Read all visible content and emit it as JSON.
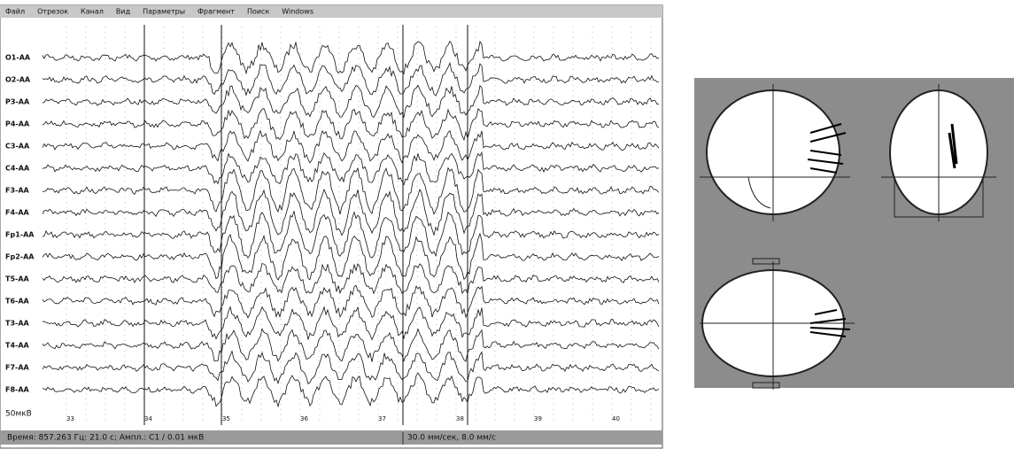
{
  "menu": [
    "Файл",
    "Отрезок",
    "Канал",
    "Вид",
    "Параметры",
    "Фрагмент",
    "Поиск",
    "Windows"
  ],
  "channels": [
    "O1-AA",
    "O2-AA",
    "P3-AA",
    "P4-AA",
    "C3-AA",
    "C4-AA",
    "F3-AA",
    "F4-AA",
    "Fp1-AA",
    "Fp2-AA",
    "T5-AA",
    "T6-AA",
    "T3-AA",
    "T4-AA",
    "F7-AA",
    "F8-AA"
  ],
  "time_ticks": [
    "33",
    "34",
    "35",
    "36",
    "37",
    "38",
    "39",
    "40"
  ],
  "scale_label": "50мкВ",
  "status": {
    "left": "Время: 857.263 Гц: 21.0 с; Ампл.: C1 / 0.01 мкВ",
    "right": "30.0 мм/сек, 8.0 мм/с"
  }
}
